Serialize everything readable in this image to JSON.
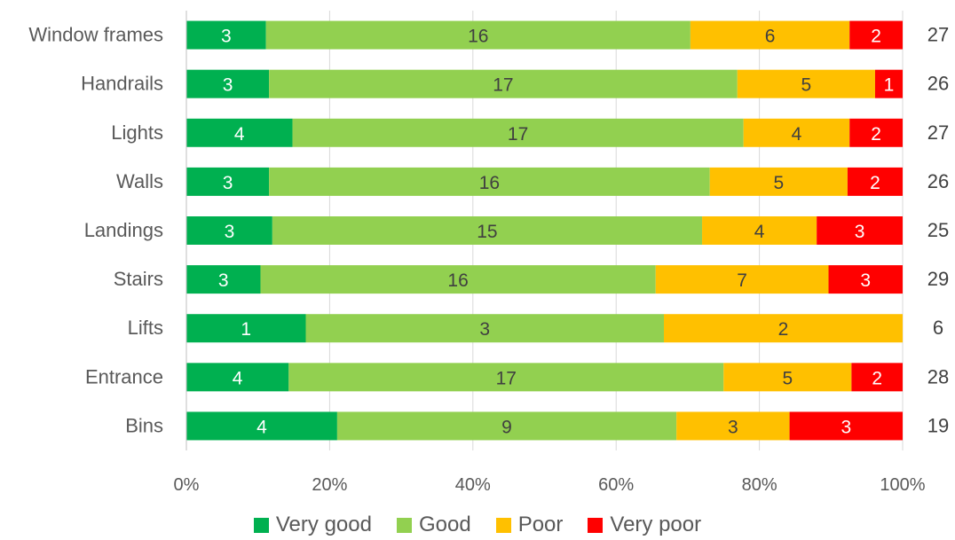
{
  "chart_data": {
    "type": "bar",
    "orientation": "horizontal",
    "stacking": "percent",
    "categories": [
      "Window frames",
      "Handrails",
      "Lights",
      "Walls",
      "Landings",
      "Stairs",
      "Lifts",
      "Entrance",
      "Bins"
    ],
    "series": [
      {
        "name": "Very good",
        "color": "#00B050",
        "values": [
          3,
          3,
          4,
          3,
          3,
          3,
          1,
          4,
          4
        ]
      },
      {
        "name": "Good",
        "color": "#92D050",
        "values": [
          16,
          17,
          17,
          16,
          15,
          16,
          3,
          17,
          9
        ]
      },
      {
        "name": "Poor",
        "color": "#FFC000",
        "values": [
          6,
          5,
          4,
          5,
          4,
          7,
          2,
          5,
          3
        ]
      },
      {
        "name": "Very poor",
        "color": "#FF0000",
        "values": [
          2,
          1,
          2,
          2,
          3,
          3,
          0,
          2,
          3
        ]
      }
    ],
    "totals": [
      27,
      26,
      27,
      26,
      25,
      29,
      6,
      28,
      19
    ],
    "x_ticks": [
      "0%",
      "20%",
      "40%",
      "60%",
      "80%",
      "100%"
    ],
    "xlim": [
      0,
      100
    ],
    "grid": true,
    "legend_position": "bottom"
  }
}
